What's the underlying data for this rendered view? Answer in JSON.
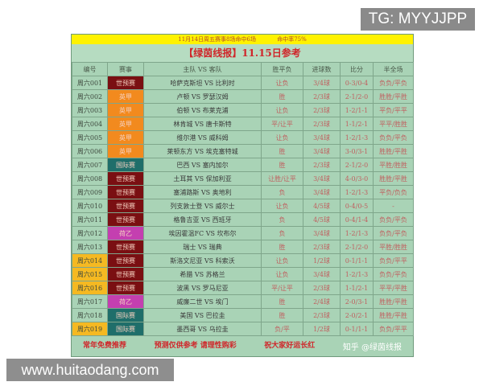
{
  "watermarks": {
    "tg": "TG: MYYJJPP",
    "site": "www.huitaodang.com",
    "zhihu": "知乎 @绿茵线报"
  },
  "banner": {
    "left": "11月14日周五赛事8场命中6场",
    "right": "命中率75%"
  },
  "title": "【绿茵线报】11.15日参考",
  "headers": [
    "编号",
    "赛事",
    "主队 VS 客队",
    "胜平负",
    "进球数",
    "比分",
    "半全场"
  ],
  "league_colors": {
    "世预赛": "#7a0f12",
    "英甲": "#f28a1e",
    "国际赛": "#1f6e6a",
    "荷乙": "#c43fb0"
  },
  "highlight_color": "#f5b922",
  "rows": [
    {
      "id": "周六001",
      "league": "世预赛",
      "match": "哈萨克斯坦 VS 比利时",
      "wdl": "让负",
      "goals": "3/4球",
      "score": "0-3/0-4",
      "htft": "负负/平负",
      "hl": false
    },
    {
      "id": "周六002",
      "league": "英甲",
      "match": "卢顿 VS 罗瑟汉姆",
      "wdl": "胜",
      "goals": "2/3球",
      "score": "2-1/2-0",
      "htft": "胜胜/平胜",
      "hl": false
    },
    {
      "id": "周六003",
      "league": "英甲",
      "match": "伯顿 VS 布莱克浦",
      "wdl": "让负",
      "goals": "2/3球",
      "score": "1-2/1-1",
      "htft": "平负/平平",
      "hl": false
    },
    {
      "id": "周六004",
      "league": "英甲",
      "match": "林肯城 VS 唐卡斯特",
      "wdl": "平/让平",
      "goals": "2/3球",
      "score": "1-1/2-1",
      "htft": "平平/胜胜",
      "hl": false
    },
    {
      "id": "周六005",
      "league": "英甲",
      "match": "维尔港 VS 威科姆",
      "wdl": "让负",
      "goals": "3/4球",
      "score": "1-2/1-3",
      "htft": "负负/平负",
      "hl": false
    },
    {
      "id": "周六006",
      "league": "英甲",
      "match": "莱顿东方 VS 埃克塞特城",
      "wdl": "胜",
      "goals": "3/4球",
      "score": "3-0/3-1",
      "htft": "胜胜/平胜",
      "hl": false
    },
    {
      "id": "周六007",
      "league": "国际赛",
      "match": "巴西 VS 塞内加尔",
      "wdl": "胜",
      "goals": "2/3球",
      "score": "2-1/2-0",
      "htft": "平胜/胜胜",
      "hl": false
    },
    {
      "id": "周六008",
      "league": "世预赛",
      "match": "土耳其 VS 保加利亚",
      "wdl": "让胜/让平",
      "goals": "3/4球",
      "score": "4-0/3-0",
      "htft": "胜胜/平胜",
      "hl": false
    },
    {
      "id": "周六009",
      "league": "世预赛",
      "match": "塞浦路斯 VS 奥地利",
      "wdl": "负",
      "goals": "3/4球",
      "score": "1-2/1-3",
      "htft": "平负/负负",
      "hl": false
    },
    {
      "id": "周六010",
      "league": "世预赛",
      "match": "列支敦士登 VS 威尔士",
      "wdl": "让负",
      "goals": "4/5球",
      "score": "0-4/0-5",
      "htft": "-",
      "hl": false
    },
    {
      "id": "周六011",
      "league": "世预赛",
      "match": "格鲁吉亚 VS 西班牙",
      "wdl": "负",
      "goals": "4/5球",
      "score": "0-4/1-4",
      "htft": "负负/平负",
      "hl": false
    },
    {
      "id": "周六012",
      "league": "荷乙",
      "match": "埃因霍温FC VS 坎布尔",
      "wdl": "负",
      "goals": "3/4球",
      "score": "1-2/1-3",
      "htft": "负负/平负",
      "hl": false
    },
    {
      "id": "周六013",
      "league": "世预赛",
      "match": "瑞士 VS 瑞典",
      "wdl": "胜",
      "goals": "2/3球",
      "score": "2-1/2-0",
      "htft": "平胜/胜胜",
      "hl": false
    },
    {
      "id": "周六014",
      "league": "世预赛",
      "match": "斯洛文尼亚 VS 科索沃",
      "wdl": "让负",
      "goals": "1/2球",
      "score": "0-1/1-1",
      "htft": "负负/平平",
      "hl": true
    },
    {
      "id": "周六015",
      "league": "世预赛",
      "match": "希腊 VS 苏格兰",
      "wdl": "让负",
      "goals": "3/4球",
      "score": "1-2/1-3",
      "htft": "负负/平负",
      "hl": true
    },
    {
      "id": "周六016",
      "league": "世预赛",
      "match": "波黑 VS 罗马尼亚",
      "wdl": "平/让平",
      "goals": "2/3球",
      "score": "1-1/2-1",
      "htft": "平平/平胜",
      "hl": true
    },
    {
      "id": "周六017",
      "league": "荷乙",
      "match": "威廉二世 VS 埃门",
      "wdl": "胜",
      "goals": "2/4球",
      "score": "2-0/3-1",
      "htft": "胜胜/平胜",
      "hl": false
    },
    {
      "id": "周六018",
      "league": "国际赛",
      "match": "美国 VS 巴拉圭",
      "wdl": "胜",
      "goals": "2/3球",
      "score": "2-0/2-1",
      "htft": "胜胜/平胜",
      "hl": false
    },
    {
      "id": "周六019",
      "league": "国际赛",
      "match": "墨西哥 VS 乌拉圭",
      "wdl": "负/平",
      "goals": "1/2球",
      "score": "0-1/1-1",
      "htft": "负负/平平",
      "hl": true
    }
  ],
  "footer": [
    "常年免费推荐",
    "预测仅供参考  请理性购彩",
    "祝大家好运长红"
  ]
}
